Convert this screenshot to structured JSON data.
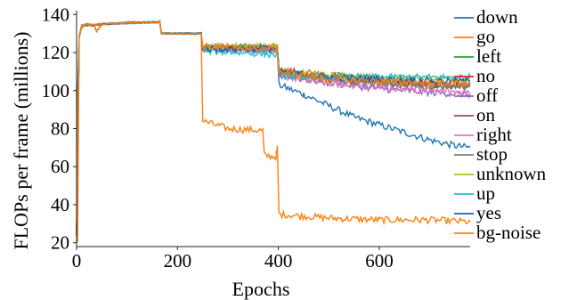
{
  "chart_data": {
    "type": "line",
    "title": "",
    "xlabel": "Epochs",
    "ylabel": "FLOPs per frame (millions)",
    "xlim": [
      0,
      780
    ],
    "ylim": [
      18,
      142
    ],
    "xticks": [
      0,
      200,
      400,
      600
    ],
    "yticks": [
      20,
      40,
      60,
      80,
      100,
      120,
      140
    ],
    "grid": false,
    "legend_position": "right",
    "series": [
      {
        "name": "down",
        "color": "#1f77b4",
        "points": [
          [
            0,
            25
          ],
          [
            2,
            100
          ],
          [
            5,
            128
          ],
          [
            10,
            134
          ],
          [
            20,
            135
          ],
          [
            35,
            134
          ],
          [
            40,
            131
          ],
          [
            50,
            135
          ],
          [
            100,
            136
          ],
          [
            165,
            136
          ],
          [
            168,
            130
          ],
          [
            247,
            130
          ],
          [
            250,
            122
          ],
          [
            300,
            122
          ],
          [
            398,
            122
          ],
          [
            401,
            103
          ],
          [
            450,
            98
          ],
          [
            500,
            92
          ],
          [
            550,
            86
          ],
          [
            600,
            82
          ],
          [
            650,
            78
          ],
          [
            700,
            74
          ],
          [
            750,
            71
          ],
          [
            780,
            70
          ]
        ]
      },
      {
        "name": "go",
        "color": "#ff7f0e",
        "points": [
          [
            0,
            102
          ],
          [
            2,
            20
          ],
          [
            5,
            128
          ],
          [
            10,
            133
          ],
          [
            20,
            135
          ],
          [
            35,
            134
          ],
          [
            40,
            131
          ],
          [
            50,
            135
          ],
          [
            100,
            136
          ],
          [
            165,
            136
          ],
          [
            168,
            130
          ],
          [
            247,
            130
          ],
          [
            250,
            84
          ],
          [
            300,
            80
          ],
          [
            369,
            79
          ],
          [
            372,
            66
          ],
          [
            395,
            65
          ],
          [
            398,
            70
          ],
          [
            401,
            35
          ],
          [
            500,
            33
          ],
          [
            600,
            32
          ],
          [
            700,
            32
          ],
          [
            780,
            31
          ]
        ]
      },
      {
        "name": "left",
        "color": "#2ca02c",
        "points": [
          [
            0,
            24
          ],
          [
            5,
            128
          ],
          [
            10,
            134
          ],
          [
            50,
            135
          ],
          [
            165,
            136
          ],
          [
            168,
            130
          ],
          [
            247,
            130
          ],
          [
            250,
            123
          ],
          [
            398,
            123
          ],
          [
            401,
            110
          ],
          [
            500,
            107
          ],
          [
            600,
            105
          ],
          [
            700,
            103
          ],
          [
            780,
            103
          ]
        ]
      },
      {
        "name": "no",
        "color": "#d62728",
        "points": [
          [
            0,
            24
          ],
          [
            5,
            128
          ],
          [
            10,
            134
          ],
          [
            50,
            135
          ],
          [
            165,
            136
          ],
          [
            168,
            130
          ],
          [
            247,
            130
          ],
          [
            250,
            123
          ],
          [
            398,
            122
          ],
          [
            401,
            111
          ],
          [
            500,
            108
          ],
          [
            600,
            106
          ],
          [
            700,
            104
          ],
          [
            780,
            104
          ]
        ]
      },
      {
        "name": "off",
        "color": "#9467bd",
        "points": [
          [
            0,
            24
          ],
          [
            5,
            128
          ],
          [
            10,
            134
          ],
          [
            50,
            135
          ],
          [
            165,
            136
          ],
          [
            168,
            130
          ],
          [
            247,
            130
          ],
          [
            250,
            122
          ],
          [
            398,
            121
          ],
          [
            401,
            108
          ],
          [
            500,
            104
          ],
          [
            600,
            101
          ],
          [
            700,
            99
          ],
          [
            780,
            98
          ]
        ]
      },
      {
        "name": "on",
        "color": "#8c564b",
        "points": [
          [
            0,
            24
          ],
          [
            5,
            128
          ],
          [
            10,
            134
          ],
          [
            50,
            135
          ],
          [
            165,
            136
          ],
          [
            168,
            130
          ],
          [
            247,
            130
          ],
          [
            250,
            123
          ],
          [
            398,
            122
          ],
          [
            401,
            110
          ],
          [
            500,
            106
          ],
          [
            600,
            104
          ],
          [
            700,
            102
          ],
          [
            780,
            102
          ]
        ]
      },
      {
        "name": "right",
        "color": "#e377c2",
        "points": [
          [
            0,
            24
          ],
          [
            5,
            128
          ],
          [
            10,
            134
          ],
          [
            50,
            135
          ],
          [
            165,
            136
          ],
          [
            168,
            130
          ],
          [
            247,
            130
          ],
          [
            250,
            122
          ],
          [
            398,
            121
          ],
          [
            401,
            108
          ],
          [
            500,
            104
          ],
          [
            600,
            102
          ],
          [
            700,
            100
          ],
          [
            780,
            99
          ]
        ]
      },
      {
        "name": "stop",
        "color": "#7f7f7f",
        "points": [
          [
            0,
            24
          ],
          [
            5,
            128
          ],
          [
            10,
            134
          ],
          [
            50,
            135
          ],
          [
            165,
            136
          ],
          [
            168,
            130
          ],
          [
            247,
            130
          ],
          [
            250,
            123
          ],
          [
            398,
            122
          ],
          [
            401,
            109
          ],
          [
            500,
            106
          ],
          [
            600,
            104
          ],
          [
            700,
            103
          ],
          [
            780,
            103
          ]
        ]
      },
      {
        "name": "unknown",
        "color": "#bcbd22",
        "points": [
          [
            0,
            24
          ],
          [
            5,
            128
          ],
          [
            10,
            134
          ],
          [
            50,
            135
          ],
          [
            165,
            136
          ],
          [
            168,
            130
          ],
          [
            247,
            130
          ],
          [
            250,
            123
          ],
          [
            398,
            123
          ],
          [
            401,
            110
          ],
          [
            500,
            108
          ],
          [
            600,
            107
          ],
          [
            700,
            106
          ],
          [
            780,
            106
          ]
        ]
      },
      {
        "name": "up",
        "color": "#17becf",
        "points": [
          [
            0,
            24
          ],
          [
            5,
            128
          ],
          [
            10,
            134
          ],
          [
            50,
            135
          ],
          [
            165,
            136
          ],
          [
            168,
            130
          ],
          [
            247,
            130
          ],
          [
            250,
            121
          ],
          [
            398,
            119
          ],
          [
            401,
            108
          ],
          [
            500,
            107
          ],
          [
            600,
            107
          ],
          [
            700,
            107
          ],
          [
            780,
            107
          ]
        ]
      },
      {
        "name": "yes",
        "color": "#1f5faa",
        "points": [
          [
            0,
            24
          ],
          [
            5,
            128
          ],
          [
            10,
            134
          ],
          [
            50,
            135
          ],
          [
            165,
            136
          ],
          [
            168,
            130
          ],
          [
            247,
            130
          ],
          [
            250,
            122
          ],
          [
            398,
            122
          ],
          [
            401,
            110
          ],
          [
            500,
            107
          ],
          [
            600,
            106
          ],
          [
            700,
            105
          ],
          [
            780,
            105
          ]
        ]
      },
      {
        "name": "bg-noise",
        "color": "#ff7f0e",
        "points": [
          [
            0,
            24
          ],
          [
            5,
            128
          ],
          [
            10,
            134
          ],
          [
            50,
            135
          ],
          [
            165,
            136
          ],
          [
            168,
            130
          ],
          [
            247,
            130
          ],
          [
            250,
            123
          ],
          [
            398,
            122
          ],
          [
            401,
            110
          ],
          [
            500,
            106
          ],
          [
            600,
            105
          ],
          [
            700,
            104
          ],
          [
            780,
            104
          ]
        ]
      }
    ]
  }
}
